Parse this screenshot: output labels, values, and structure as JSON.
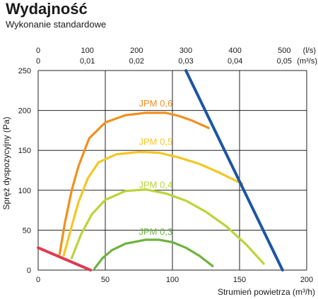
{
  "title": "Wydajność",
  "subtitle": "Wykonanie standardowe",
  "chart_data": {
    "type": "line",
    "xlabel": "Strumień powietrza (m³/h)",
    "ylabel": "Spręż dyspozycyjny (Pa)",
    "xlim": [
      0,
      200
    ],
    "ylim": [
      0,
      250
    ],
    "x_ticks": [
      "0",
      "50",
      "100",
      "150",
      "200"
    ],
    "y_ticks": [
      "0",
      "50",
      "100",
      "150",
      "200",
      "250"
    ],
    "top_axis_ls": {
      "unit": "(l/s)",
      "ticks": [
        "0",
        "100",
        "200",
        "300",
        "400",
        "500"
      ],
      "values": [
        0,
        100,
        200,
        300,
        400,
        500
      ]
    },
    "top_axis_m3s": {
      "unit": "(m³/s)",
      "ticks": [
        "0",
        "0,01",
        "0,02",
        "0,03",
        "0,04",
        "0,05"
      ],
      "values": [
        0,
        0.01,
        0.02,
        0.03,
        0.04,
        0.05
      ]
    },
    "grid": true,
    "series": [
      {
        "name": "JPM 0,6",
        "color": "#f0901e",
        "label_at": [
          75,
          205
        ],
        "points": [
          [
            16,
            20
          ],
          [
            20,
            60
          ],
          [
            25,
            100
          ],
          [
            30,
            130
          ],
          [
            38,
            165
          ],
          [
            50,
            185
          ],
          [
            65,
            194
          ],
          [
            80,
            197
          ],
          [
            95,
            197
          ],
          [
            105,
            193
          ],
          [
            115,
            187
          ],
          [
            127,
            178
          ]
        ]
      },
      {
        "name": "JPM 0,5",
        "color": "#f6c623",
        "label_at": [
          75,
          157
        ],
        "points": [
          [
            19,
            18
          ],
          [
            25,
            55
          ],
          [
            30,
            85
          ],
          [
            37,
            115
          ],
          [
            45,
            135
          ],
          [
            58,
            145
          ],
          [
            75,
            148
          ],
          [
            90,
            147
          ],
          [
            105,
            141
          ],
          [
            120,
            133
          ],
          [
            135,
            122
          ],
          [
            152,
            108
          ]
        ]
      },
      {
        "name": "JPM 0,4",
        "color": "#bcd437",
        "label_at": [
          75,
          103
        ],
        "points": [
          [
            25,
            15
          ],
          [
            32,
            45
          ],
          [
            40,
            70
          ],
          [
            50,
            88
          ],
          [
            65,
            99
          ],
          [
            80,
            101
          ],
          [
            95,
            96
          ],
          [
            110,
            87
          ],
          [
            125,
            73
          ],
          [
            140,
            55
          ],
          [
            155,
            32
          ],
          [
            168,
            8
          ]
        ]
      },
      {
        "name": "JPM 0,3",
        "color": "#6db33f",
        "label_at": [
          75,
          44
        ],
        "points": [
          [
            42,
            2
          ],
          [
            48,
            15
          ],
          [
            55,
            25
          ],
          [
            65,
            33
          ],
          [
            80,
            38
          ],
          [
            90,
            38
          ],
          [
            100,
            35
          ],
          [
            110,
            28
          ],
          [
            120,
            18
          ],
          [
            130,
            5
          ]
        ]
      }
    ],
    "limit_lines": [
      {
        "color": "#1c56a4",
        "points": [
          [
            110,
            250
          ],
          [
            182,
            0
          ]
        ]
      },
      {
        "color": "#e03a52",
        "points": [
          [
            0,
            28
          ],
          [
            39,
            0
          ]
        ]
      }
    ]
  }
}
